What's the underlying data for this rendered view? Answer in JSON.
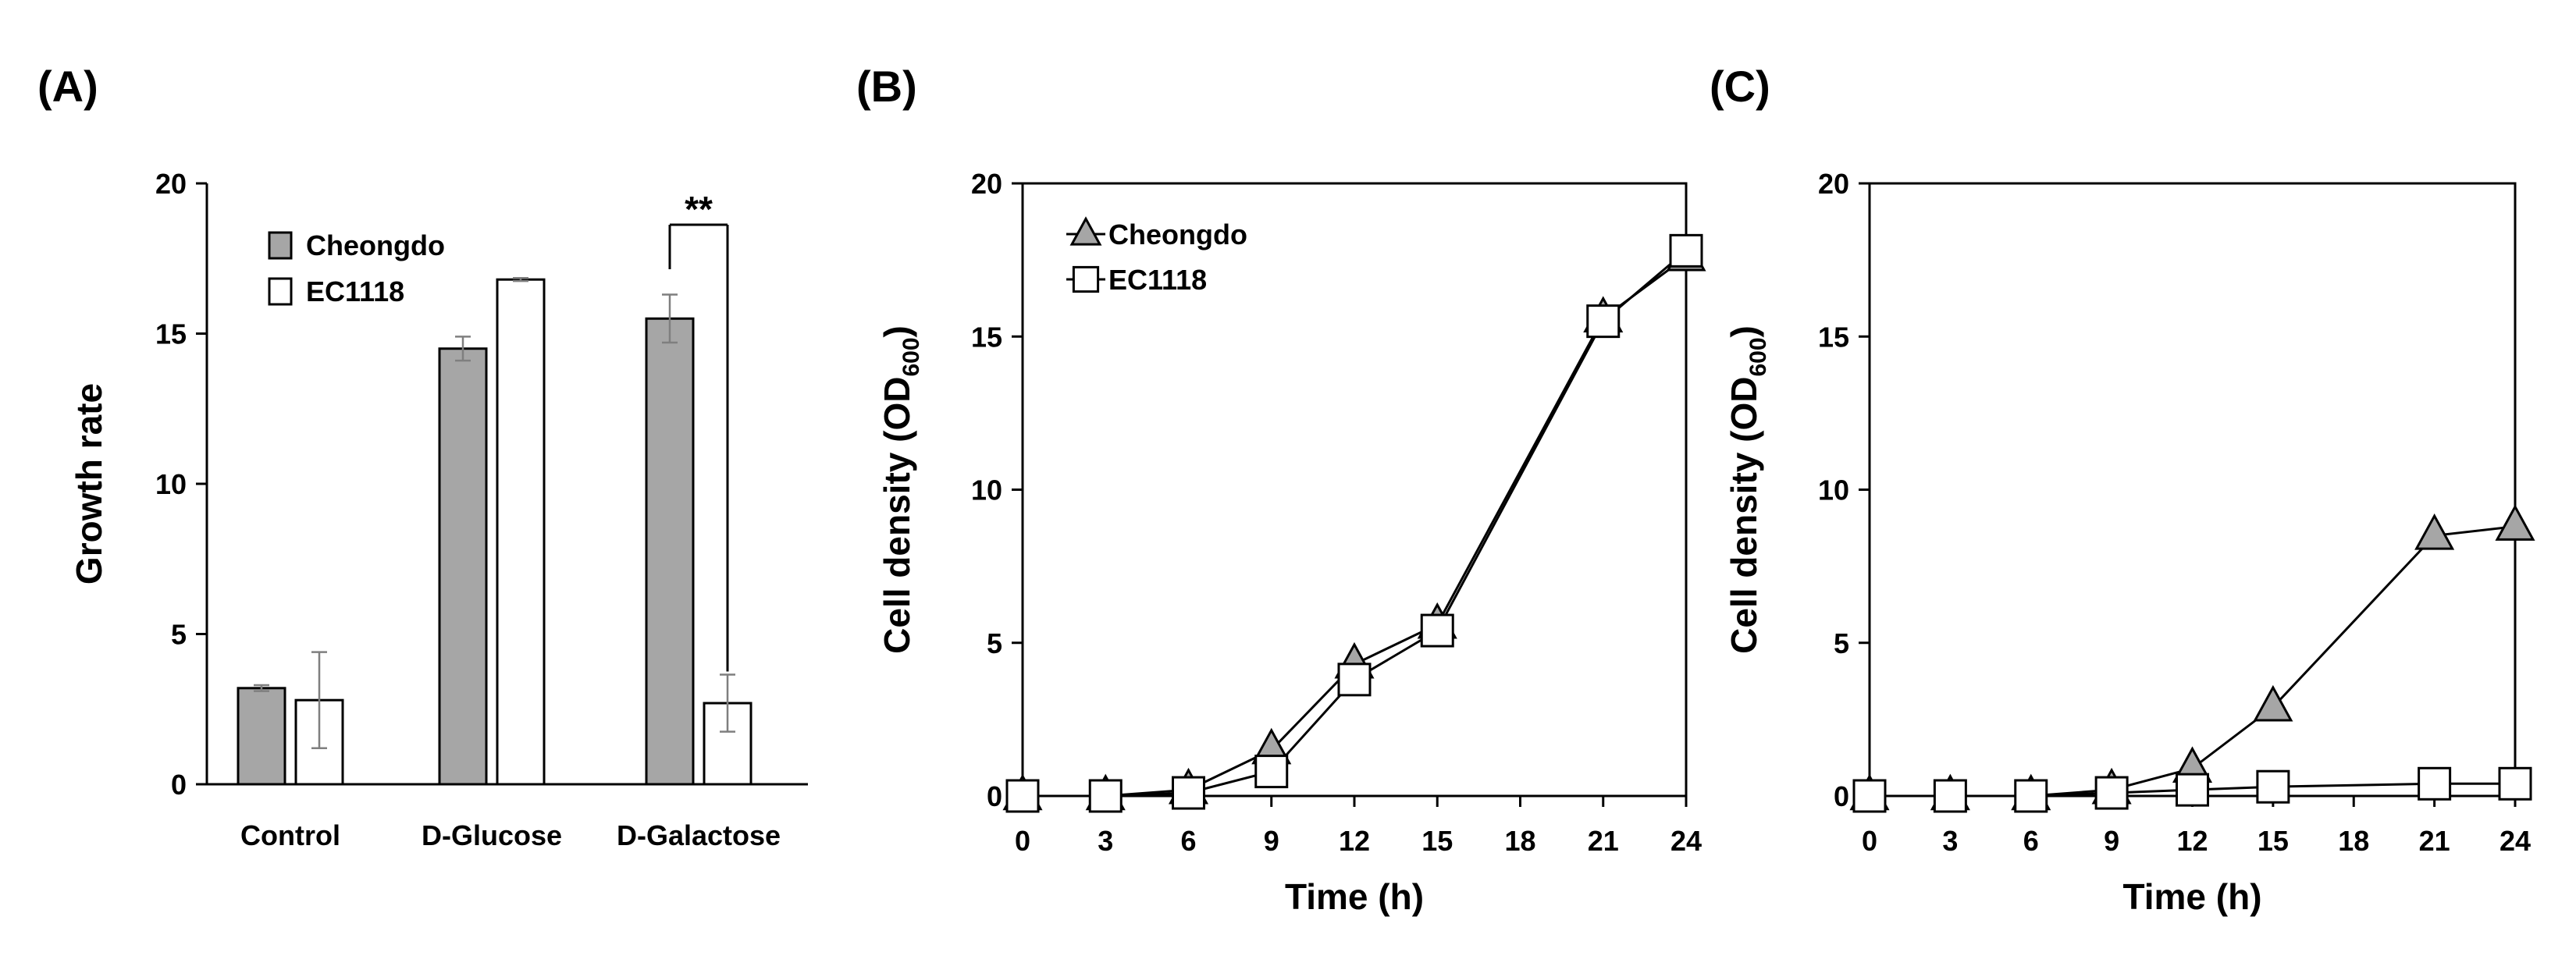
{
  "colors": {
    "cheongdo": "#a6a6a6",
    "ec1118": "#ffffff",
    "stroke": "#000000",
    "error": "#7f7f7f"
  },
  "chart_data": [
    {
      "panel": "(A)",
      "type": "bar",
      "categories": [
        "Control",
        "D-Glucose",
        "D-Galactose"
      ],
      "series": [
        {
          "name": "Cheongdo",
          "values": [
            3.2,
            14.5,
            15.5
          ],
          "errors": [
            0.1,
            0.4,
            0.8
          ]
        },
        {
          "name": "EC1118",
          "values": [
            2.8,
            16.8,
            2.7
          ],
          "errors": [
            1.6,
            0.05,
            0.95
          ]
        }
      ],
      "ylabel": "Growth rate",
      "xlabel": "",
      "ylim": [
        0,
        20
      ],
      "yticks": [
        0,
        5,
        10,
        15,
        20
      ],
      "annotation": {
        "text": "**",
        "category": "D-Galactose"
      }
    },
    {
      "panel": "(B)",
      "type": "line",
      "x": [
        0,
        3,
        6,
        9,
        12,
        15,
        21,
        24
      ],
      "series": [
        {
          "name": "Cheongdo",
          "marker": "triangle",
          "values": [
            0,
            0,
            0.2,
            1.5,
            4.3,
            5.6,
            15.6,
            17.6
          ]
        },
        {
          "name": "EC1118",
          "marker": "square",
          "values": [
            0,
            0,
            0.1,
            0.8,
            3.8,
            5.4,
            15.5,
            17.8
          ]
        }
      ],
      "xlabel": "Time (h)",
      "ylabel_main": "Cell density (OD",
      "ylabel_sub": "600",
      "ylabel_end": ")",
      "xlim": [
        0,
        24
      ],
      "xticks": [
        0,
        3,
        6,
        9,
        12,
        15,
        18,
        21,
        24
      ],
      "ylim": [
        0,
        20
      ],
      "yticks": [
        0,
        5,
        10,
        15,
        20
      ],
      "legend": "top-left"
    },
    {
      "panel": "(C)",
      "type": "line",
      "x": [
        0,
        3,
        6,
        9,
        12,
        15,
        21,
        24
      ],
      "series": [
        {
          "name": "Cheongdo",
          "marker": "triangle",
          "values": [
            0,
            0,
            0,
            0.2,
            0.9,
            2.9,
            8.5,
            8.8
          ]
        },
        {
          "name": "EC1118",
          "marker": "square",
          "values": [
            0,
            0,
            0,
            0.1,
            0.2,
            0.3,
            0.4,
            0.4
          ]
        }
      ],
      "xlabel": "Time (h)",
      "ylabel_main": "Cell density (OD",
      "ylabel_sub": "600",
      "ylabel_end": ")",
      "xlim": [
        0,
        24
      ],
      "xticks": [
        0,
        3,
        6,
        9,
        12,
        15,
        18,
        21,
        24
      ],
      "ylim": [
        0,
        20
      ],
      "yticks": [
        0,
        5,
        10,
        15,
        20
      ]
    }
  ]
}
